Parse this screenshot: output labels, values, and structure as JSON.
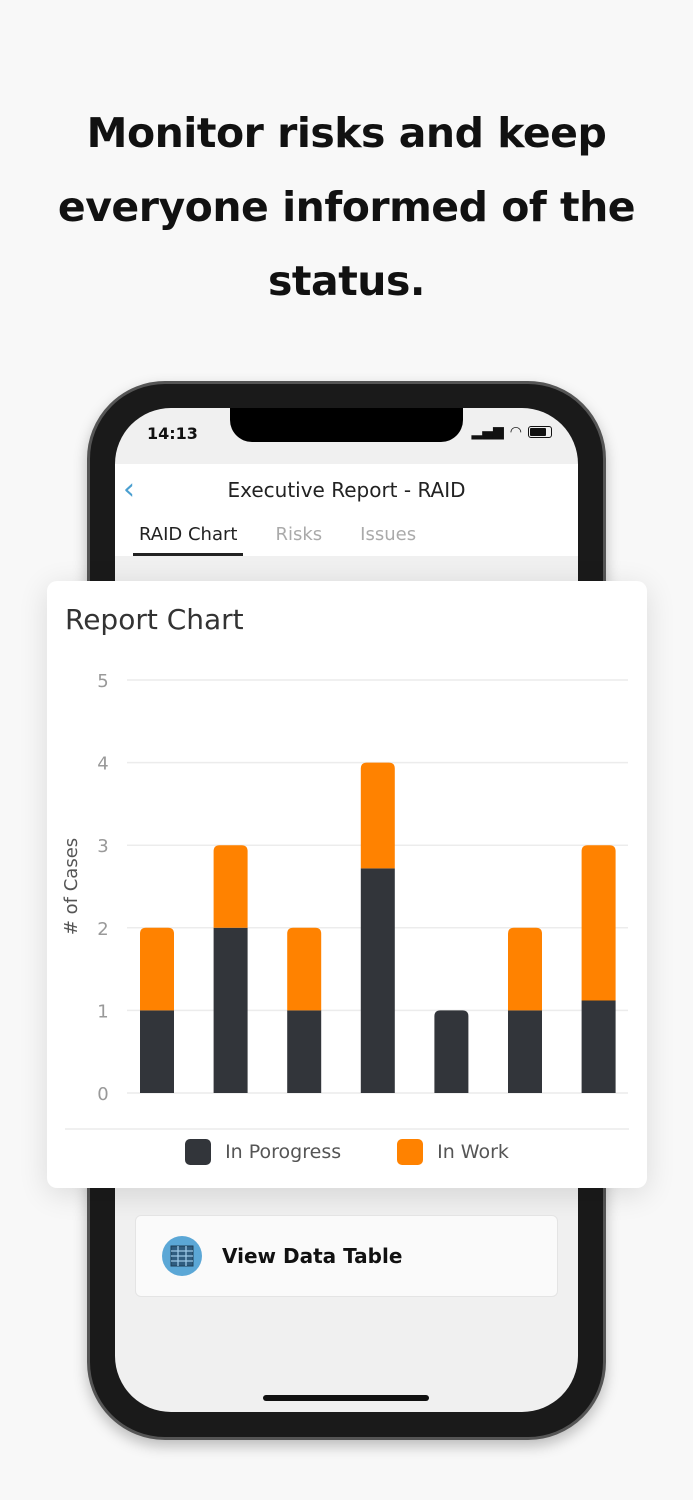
{
  "headline": "Monitor risks and keep everyone informed of the status.",
  "status_bar": {
    "time": "14:13"
  },
  "nav": {
    "title": "Executive Report - RAID"
  },
  "tabs": [
    {
      "label": "RAID Chart",
      "active": true
    },
    {
      "label": "Risks"
    },
    {
      "label": "Issues"
    }
  ],
  "card": {
    "title": "Report Chart"
  },
  "view_data_table": {
    "label": "View Data Table",
    "icon": "table-icon"
  },
  "colors": {
    "in_progress": "#32353a",
    "in_work": "#ff8200",
    "accent": "#4a9fd0"
  },
  "chart_data": {
    "type": "bar",
    "stacked": true,
    "ylabel": "# of Cases",
    "ylim": [
      0,
      5
    ],
    "yticks": [
      "0",
      "1",
      "2",
      "3",
      "4",
      "5"
    ],
    "grid": true,
    "legend": "bottom",
    "categories": [
      "",
      "",
      "",
      "",
      "",
      "",
      ""
    ],
    "series": [
      {
        "name": "In Porogress",
        "values": [
          1,
          2,
          1,
          2.72,
          1,
          1,
          1.12
        ]
      },
      {
        "name": "In Work",
        "values": [
          1,
          1,
          1,
          1.28,
          0,
          1,
          1.88
        ]
      }
    ]
  }
}
